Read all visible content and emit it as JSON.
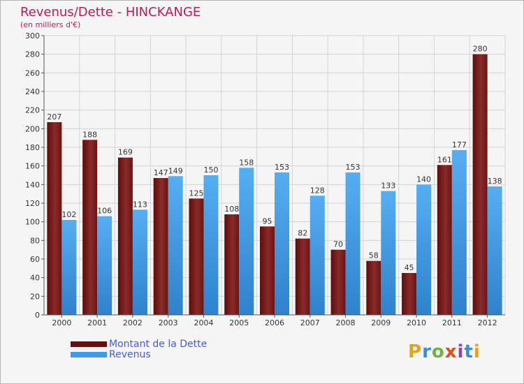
{
  "title": "Revenus/Dette - HINCKANGE",
  "subtitle": "(en milliers d'€)",
  "chart_data": {
    "type": "bar",
    "categories": [
      "2000",
      "2001",
      "2002",
      "2003",
      "2004",
      "2005",
      "2006",
      "2007",
      "2008",
      "2009",
      "2010",
      "2011",
      "2012"
    ],
    "series": [
      {
        "name": "Montant de la Dette",
        "values": [
          207,
          188,
          169,
          147,
          125,
          108,
          95,
          82,
          70,
          58,
          45,
          161,
          280
        ],
        "color": "#7a1c1c"
      },
      {
        "name": "Revenus",
        "values": [
          102,
          106,
          113,
          149,
          150,
          158,
          153,
          128,
          153,
          133,
          140,
          177,
          138
        ],
        "color": "#3d9be9"
      }
    ],
    "ylim": [
      0,
      300
    ],
    "yticks": [
      0,
      20,
      40,
      60,
      80,
      100,
      120,
      140,
      160,
      180,
      200,
      220,
      240,
      260,
      280,
      300
    ],
    "grid": true,
    "legend_position": "bottom-left"
  },
  "legend": {
    "items": [
      {
        "label": "Montant de la Dette",
        "color": "#6a0f0f"
      },
      {
        "label": "Revenus",
        "color": "#3d9be9"
      }
    ]
  },
  "logo": {
    "letters": [
      "P",
      "r",
      "o",
      "x",
      "i",
      "t",
      "i"
    ],
    "colors": [
      "#e6a11d",
      "#3b8fd6",
      "#6db33f",
      "#e64a19",
      "#8e44ad",
      "#3b8fd6",
      "#e6a11d"
    ]
  }
}
